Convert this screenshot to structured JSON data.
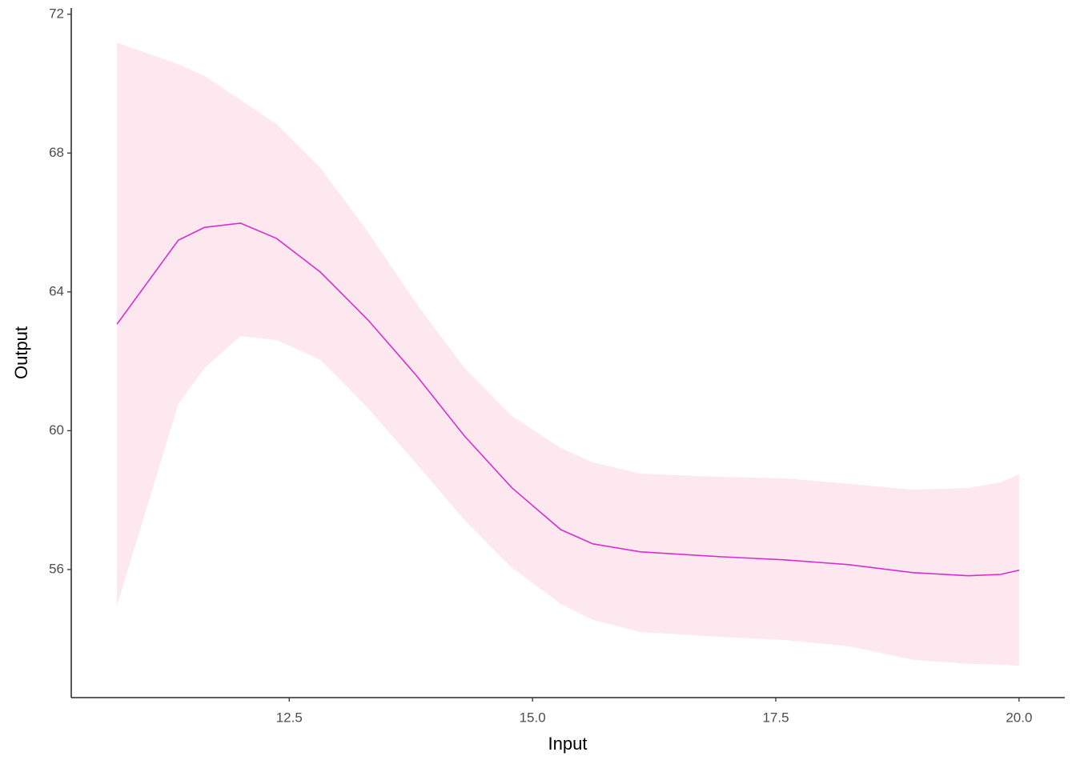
{
  "chart_data": {
    "type": "line",
    "x_label": "Input",
    "y_label": "Output",
    "x": [
      10.73,
      11.36,
      11.63,
      12.0,
      12.37,
      12.82,
      13.31,
      13.81,
      14.3,
      14.79,
      15.29,
      15.62,
      16.11,
      16.93,
      17.59,
      18.25,
      18.91,
      19.48,
      19.81,
      20.0
    ],
    "values": [
      63.07,
      65.49,
      65.86,
      65.98,
      65.54,
      64.57,
      63.19,
      61.58,
      59.85,
      58.35,
      57.15,
      56.74,
      56.51,
      56.37,
      56.28,
      56.14,
      55.91,
      55.82,
      55.86,
      55.98
    ],
    "color": "#d62fd0",
    "band": {
      "color": "#fde8ef",
      "upper": [
        71.18,
        70.56,
        70.22,
        69.53,
        68.83,
        67.57,
        65.72,
        63.65,
        61.81,
        60.42,
        59.5,
        59.09,
        58.76,
        58.67,
        58.63,
        58.47,
        58.3,
        58.35,
        58.51,
        58.74
      ],
      "lower": [
        54.96,
        60.77,
        61.81,
        62.73,
        62.61,
        62.04,
        60.65,
        59.04,
        57.43,
        56.05,
        55.01,
        54.55,
        54.2,
        54.06,
        53.97,
        53.79,
        53.4,
        53.28,
        53.26,
        53.23
      ]
    },
    "xlim": [
      10.26,
      20.47
    ],
    "ylim": [
      52.31,
      72.18
    ],
    "xticks": [
      12.5,
      {
        "value": 15,
        "label": "15.0"
      },
      17.5,
      {
        "value": 20,
        "label": "20.0"
      }
    ],
    "yticks": [
      56,
      60,
      64,
      68,
      72
    ]
  }
}
